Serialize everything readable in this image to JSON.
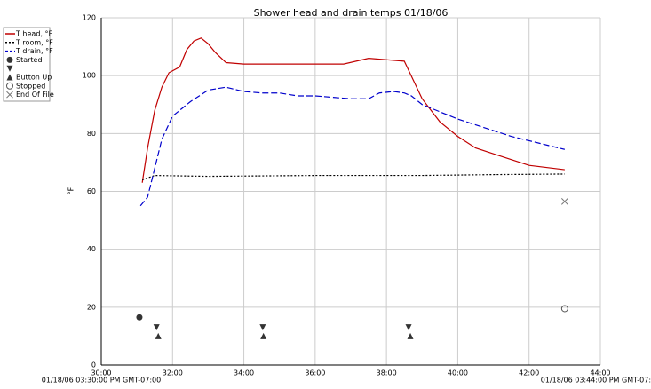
{
  "chart_data": {
    "type": "line",
    "title": "Shower head and drain temps 01/18/06",
    "ylabel": "°F",
    "x_range_labels": [
      "01/18/06 03:30:00 PM GMT-07:00",
      "01/18/06 03:44:00 PM GMT-07:00"
    ],
    "xlim": [
      30,
      44
    ],
    "ylim": [
      0,
      120
    ],
    "xticks": [
      {
        "value": 30,
        "label": "30:00"
      },
      {
        "value": 32,
        "label": "32:00"
      },
      {
        "value": 34,
        "label": "34:00"
      },
      {
        "value": 36,
        "label": "36:00"
      },
      {
        "value": 38,
        "label": "38:00"
      },
      {
        "value": 40,
        "label": "40:00"
      },
      {
        "value": 42,
        "label": "42:00"
      },
      {
        "value": 44,
        "label": "44:00"
      }
    ],
    "yticks": [
      0,
      20,
      40,
      60,
      80,
      100,
      120
    ],
    "grid": true,
    "legend": "left",
    "series": [
      {
        "name": "T head, °F",
        "color": "#c00000",
        "dash": "solid",
        "x": [
          31.15,
          31.3,
          31.5,
          31.7,
          31.9,
          32.2,
          32.4,
          32.6,
          32.8,
          33.0,
          33.2,
          33.5,
          34,
          35,
          36,
          36.8,
          37.5,
          38,
          38.5,
          39,
          39.5,
          40,
          40.5,
          41,
          41.5,
          42,
          43
        ],
        "values": [
          63,
          75,
          88,
          96,
          101,
          103,
          109,
          112,
          113,
          111,
          108,
          104.5,
          104,
          104,
          104,
          104,
          106,
          105.5,
          105,
          92,
          84,
          79,
          75,
          73,
          71,
          69,
          67.5
        ]
      },
      {
        "name": "T room, °F",
        "color": "#000000",
        "dash": "dotted",
        "x": [
          31.15,
          31.5,
          33,
          36,
          39,
          41,
          43
        ],
        "values": [
          64,
          65.5,
          65.2,
          65.5,
          65.5,
          65.8,
          66
        ]
      },
      {
        "name": "T drain, °F",
        "color": "#0000cc",
        "dash": "dashed",
        "x": [
          31.1,
          31.3,
          31.5,
          31.7,
          32,
          32.5,
          33,
          33.5,
          34,
          34.5,
          35,
          35.5,
          36,
          36.5,
          37,
          37.5,
          37.8,
          38.2,
          38.5,
          38.7,
          39,
          39.5,
          40,
          40.5,
          41,
          41.5,
          42,
          42.5,
          43
        ],
        "values": [
          55,
          58,
          68,
          78,
          86,
          91,
          95,
          96,
          94.5,
          94,
          94,
          93,
          93,
          92.5,
          92,
          92,
          94,
          94.5,
          94,
          93,
          90,
          87.5,
          85,
          83,
          81,
          79,
          77.5,
          76,
          74.5
        ]
      },
      {
        "name": "Started",
        "color": "#333333",
        "marker": "circle-filled",
        "x": [
          31.07
        ],
        "values": [
          16.5
        ]
      },
      {
        "name": null,
        "color": "#333333",
        "marker": "triangle-down",
        "x": [
          31.55,
          34.53,
          38.62
        ],
        "values": [
          13,
          13,
          13
        ]
      },
      {
        "name": "Button Up",
        "color": "#333333",
        "marker": "triangle-up",
        "x": [
          31.6,
          34.55,
          38.67
        ],
        "values": [
          10,
          10,
          10
        ]
      },
      {
        "name": "Stopped",
        "color": "#555555",
        "marker": "circle-open",
        "x": [
          43.0
        ],
        "values": [
          19.5
        ]
      },
      {
        "name": "End Of File",
        "color": "#777777",
        "marker": "x",
        "x": [
          43.0
        ],
        "values": [
          56.5
        ]
      }
    ]
  }
}
